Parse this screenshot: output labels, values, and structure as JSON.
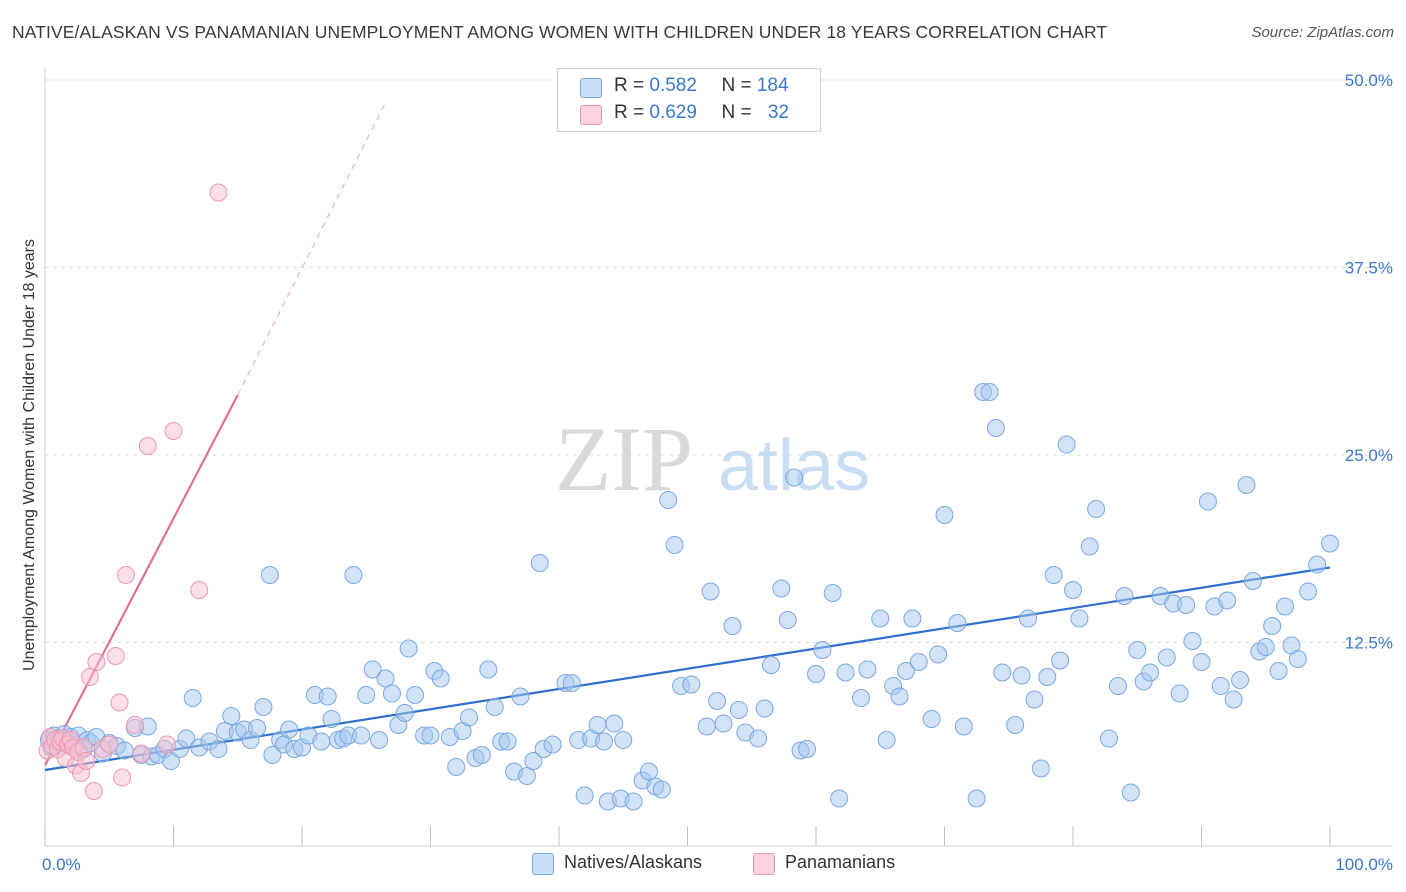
{
  "title": "NATIVE/ALASKAN VS PANAMANIAN UNEMPLOYMENT AMONG WOMEN WITH CHILDREN UNDER 18 YEARS CORRELATION CHART",
  "source": "Source: ZipAtlas.com",
  "watermark": {
    "zip": "ZIP",
    "atlas": "atlas"
  },
  "legend_top": {
    "rows": [
      {
        "r_label": "R = ",
        "r_value": "0.582",
        "n_label": "N = ",
        "n_value": "184",
        "color": "#a8c8f0"
      },
      {
        "r_label": "R = ",
        "r_value": "0.629",
        "n_label": "N = ",
        "n_value": "32",
        "color": "#f7b8cb"
      }
    ]
  },
  "bottom_legend": [
    {
      "label": "Natives/Alaskans",
      "color": "#a8c8f0"
    },
    {
      "label": "Panamanians",
      "color": "#f7b8cb"
    }
  ],
  "colors": {
    "blue_fill": "#a8c8f0",
    "blue_stroke": "#7aa8e0",
    "blue_line": "#2f6fcf",
    "pink_fill": "#f7c0d0",
    "pink_stroke": "#ef97b1",
    "pink_line": "#e0709a",
    "axis_label": "#3a78c9"
  },
  "chart_data": {
    "type": "scatter",
    "title": "NATIVE/ALASKAN VS PANAMANIAN UNEMPLOYMENT AMONG WOMEN WITH CHILDREN UNDER 18 YEARS CORRELATION CHART",
    "xlabel": "",
    "ylabel": "Unemployment Among Women with Children Under 18 years",
    "xlim": [
      0,
      100
    ],
    "ylim": [
      0,
      50
    ],
    "x_tick_labels": [
      "0.0%",
      "100.0%"
    ],
    "y_ticks": [
      12.5,
      25.0,
      37.5,
      50.0
    ],
    "y_tick_labels": [
      "12.5%",
      "25.0%",
      "37.5%",
      "50.0%"
    ],
    "grid": true,
    "legend_position": "top-center",
    "series": [
      {
        "name": "Natives/Alaskans",
        "r": 0.582,
        "n": 184,
        "trend": {
          "x": [
            0,
            100
          ],
          "y": [
            4.0,
            17.5
          ]
        },
        "points": [
          [
            0.3,
            6.0
          ],
          [
            0.5,
            5.5
          ],
          [
            0.7,
            6.3
          ],
          [
            0.9,
            5.8
          ],
          [
            1.1,
            6.1
          ],
          [
            1.3,
            5.6
          ],
          [
            1.5,
            6.4
          ],
          [
            1.7,
            5.9
          ],
          [
            2.0,
            6.2
          ],
          [
            2.3,
            5.7
          ],
          [
            2.6,
            6.3
          ],
          [
            3.0,
            5.4
          ],
          [
            3.3,
            6.0
          ],
          [
            3.6,
            5.8
          ],
          [
            4.0,
            6.2
          ],
          [
            4.5,
            5.1
          ],
          [
            5.0,
            5.8
          ],
          [
            5.6,
            5.6
          ],
          [
            6.2,
            5.3
          ],
          [
            7.0,
            6.8
          ],
          [
            7.5,
            5.0
          ],
          [
            8.0,
            6.9
          ],
          [
            8.3,
            4.9
          ],
          [
            8.8,
            5.0
          ],
          [
            9.3,
            5.4
          ],
          [
            9.8,
            4.6
          ],
          [
            10.5,
            5.4
          ],
          [
            11.0,
            6.1
          ],
          [
            11.5,
            8.8
          ],
          [
            12.0,
            5.5
          ],
          [
            12.8,
            5.9
          ],
          [
            13.5,
            5.4
          ],
          [
            14.0,
            6.6
          ],
          [
            14.5,
            7.6
          ],
          [
            15.0,
            6.5
          ],
          [
            15.5,
            6.7
          ],
          [
            16.0,
            6.0
          ],
          [
            16.5,
            6.8
          ],
          [
            17.0,
            8.2
          ],
          [
            17.5,
            17.0
          ],
          [
            17.7,
            5.0
          ],
          [
            18.3,
            6.0
          ],
          [
            18.6,
            5.7
          ],
          [
            19.0,
            6.7
          ],
          [
            19.4,
            5.4
          ],
          [
            20.0,
            5.5
          ],
          [
            20.5,
            6.3
          ],
          [
            21.0,
            9.0
          ],
          [
            21.5,
            5.9
          ],
          [
            22.0,
            8.9
          ],
          [
            22.3,
            7.4
          ],
          [
            22.8,
            6.0
          ],
          [
            23.2,
            6.1
          ],
          [
            23.6,
            6.3
          ],
          [
            24.0,
            17.0
          ],
          [
            24.6,
            6.3
          ],
          [
            25.0,
            9.0
          ],
          [
            25.5,
            10.7
          ],
          [
            26.0,
            6.0
          ],
          [
            26.5,
            10.1
          ],
          [
            27.0,
            9.1
          ],
          [
            27.5,
            7.0
          ],
          [
            28.0,
            7.8
          ],
          [
            28.3,
            12.1
          ],
          [
            28.8,
            9.0
          ],
          [
            29.5,
            6.3
          ],
          [
            30.0,
            6.3
          ],
          [
            30.3,
            10.6
          ],
          [
            30.8,
            10.1
          ],
          [
            31.5,
            6.2
          ],
          [
            32.0,
            4.2
          ],
          [
            32.5,
            6.6
          ],
          [
            33.0,
            7.5
          ],
          [
            33.5,
            4.8
          ],
          [
            34.0,
            5.0
          ],
          [
            34.5,
            10.7
          ],
          [
            35.0,
            8.2
          ],
          [
            35.5,
            5.9
          ],
          [
            36.0,
            5.9
          ],
          [
            36.5,
            3.9
          ],
          [
            37.0,
            8.9
          ],
          [
            37.5,
            3.6
          ],
          [
            38.0,
            4.6
          ],
          [
            38.5,
            17.8
          ],
          [
            38.8,
            5.4
          ],
          [
            39.5,
            5.7
          ],
          [
            40.5,
            9.8
          ],
          [
            41.0,
            9.8
          ],
          [
            41.5,
            6.0
          ],
          [
            42.0,
            2.3
          ],
          [
            42.5,
            6.1
          ],
          [
            43.0,
            7.0
          ],
          [
            43.5,
            5.9
          ],
          [
            43.8,
            1.9
          ],
          [
            44.3,
            7.1
          ],
          [
            44.8,
            2.1
          ],
          [
            45.0,
            6.0
          ],
          [
            45.8,
            1.9
          ],
          [
            46.5,
            3.3
          ],
          [
            47.0,
            3.9
          ],
          [
            47.5,
            2.9
          ],
          [
            48.0,
            2.7
          ],
          [
            48.5,
            22.0
          ],
          [
            49.0,
            19.0
          ],
          [
            49.5,
            9.6
          ],
          [
            50.3,
            9.7
          ],
          [
            51.5,
            6.9
          ],
          [
            51.8,
            15.9
          ],
          [
            52.3,
            8.6
          ],
          [
            52.8,
            7.1
          ],
          [
            53.5,
            13.6
          ],
          [
            54.0,
            8.0
          ],
          [
            54.5,
            6.5
          ],
          [
            55.5,
            6.1
          ],
          [
            56.0,
            8.1
          ],
          [
            56.5,
            11.0
          ],
          [
            57.3,
            16.1
          ],
          [
            57.8,
            14.0
          ],
          [
            58.3,
            23.5
          ],
          [
            58.8,
            5.3
          ],
          [
            59.3,
            5.4
          ],
          [
            60.0,
            10.4
          ],
          [
            60.5,
            12.0
          ],
          [
            61.3,
            15.8
          ],
          [
            61.8,
            2.1
          ],
          [
            62.3,
            10.5
          ],
          [
            63.5,
            8.8
          ],
          [
            64.0,
            10.7
          ],
          [
            65.0,
            14.1
          ],
          [
            65.5,
            6.0
          ],
          [
            66.0,
            9.6
          ],
          [
            66.5,
            8.9
          ],
          [
            67.0,
            10.6
          ],
          [
            67.5,
            14.1
          ],
          [
            68.0,
            11.2
          ],
          [
            69.0,
            7.4
          ],
          [
            69.5,
            11.7
          ],
          [
            70.0,
            21.0
          ],
          [
            71.0,
            13.8
          ],
          [
            71.5,
            6.9
          ],
          [
            72.5,
            2.1
          ],
          [
            73.0,
            29.2
          ],
          [
            73.5,
            29.2
          ],
          [
            74.0,
            26.8
          ],
          [
            74.5,
            10.5
          ],
          [
            75.5,
            7.0
          ],
          [
            76.0,
            10.3
          ],
          [
            76.5,
            14.1
          ],
          [
            77.0,
            8.7
          ],
          [
            77.5,
            4.1
          ],
          [
            78.0,
            10.2
          ],
          [
            78.5,
            17.0
          ],
          [
            79.0,
            11.3
          ],
          [
            79.5,
            25.7
          ],
          [
            80.0,
            16.0
          ],
          [
            80.5,
            14.1
          ],
          [
            81.3,
            18.9
          ],
          [
            81.8,
            21.4
          ],
          [
            82.8,
            6.1
          ],
          [
            83.5,
            9.6
          ],
          [
            84.0,
            15.6
          ],
          [
            84.5,
            2.5
          ],
          [
            85.0,
            12.0
          ],
          [
            85.5,
            9.9
          ],
          [
            86.0,
            10.5
          ],
          [
            86.8,
            15.6
          ],
          [
            87.3,
            11.5
          ],
          [
            87.8,
            15.1
          ],
          [
            88.3,
            9.1
          ],
          [
            88.8,
            15.0
          ],
          [
            89.3,
            12.6
          ],
          [
            90.0,
            11.2
          ],
          [
            90.5,
            21.9
          ],
          [
            91.0,
            14.9
          ],
          [
            91.5,
            9.6
          ],
          [
            92.0,
            15.3
          ],
          [
            92.5,
            8.7
          ],
          [
            93.0,
            10.0
          ],
          [
            93.5,
            23.0
          ],
          [
            94.0,
            16.6
          ],
          [
            94.5,
            11.9
          ],
          [
            95.0,
            12.2
          ],
          [
            95.5,
            13.6
          ],
          [
            96.0,
            10.6
          ],
          [
            96.5,
            14.9
          ],
          [
            97.0,
            12.3
          ],
          [
            97.5,
            11.4
          ],
          [
            98.3,
            15.9
          ],
          [
            99.0,
            17.7
          ],
          [
            100.0,
            19.1
          ]
        ]
      },
      {
        "name": "Panamanians",
        "r": 0.629,
        "n": 32,
        "trend": {
          "x": [
            0,
            15
          ],
          "y": [
            4.3,
            29.0
          ]
        },
        "trend_extension": {
          "x": [
            15,
            26.5
          ],
          "y": [
            29.0,
            48.5
          ]
        },
        "points": [
          [
            0.2,
            5.3
          ],
          [
            0.4,
            6.2
          ],
          [
            0.6,
            5.6
          ],
          [
            0.8,
            6.0
          ],
          [
            1.0,
            5.4
          ],
          [
            1.2,
            5.9
          ],
          [
            1.4,
            6.1
          ],
          [
            1.6,
            4.8
          ],
          [
            1.8,
            5.7
          ],
          [
            2.0,
            6.0
          ],
          [
            2.2,
            5.5
          ],
          [
            2.4,
            4.3
          ],
          [
            2.6,
            5.2
          ],
          [
            2.8,
            3.8
          ],
          [
            3.0,
            5.5
          ],
          [
            3.2,
            4.6
          ],
          [
            3.5,
            10.2
          ],
          [
            3.8,
            2.6
          ],
          [
            4.0,
            11.2
          ],
          [
            4.5,
            5.4
          ],
          [
            5.0,
            5.7
          ],
          [
            5.5,
            11.6
          ],
          [
            5.8,
            8.5
          ],
          [
            6.0,
            3.5
          ],
          [
            6.3,
            17.0
          ],
          [
            7.0,
            7.0
          ],
          [
            7.5,
            5.1
          ],
          [
            8.0,
            25.6
          ],
          [
            9.5,
            5.7
          ],
          [
            10.0,
            26.6
          ],
          [
            12.0,
            16.0
          ],
          [
            13.5,
            42.5
          ]
        ]
      }
    ]
  }
}
